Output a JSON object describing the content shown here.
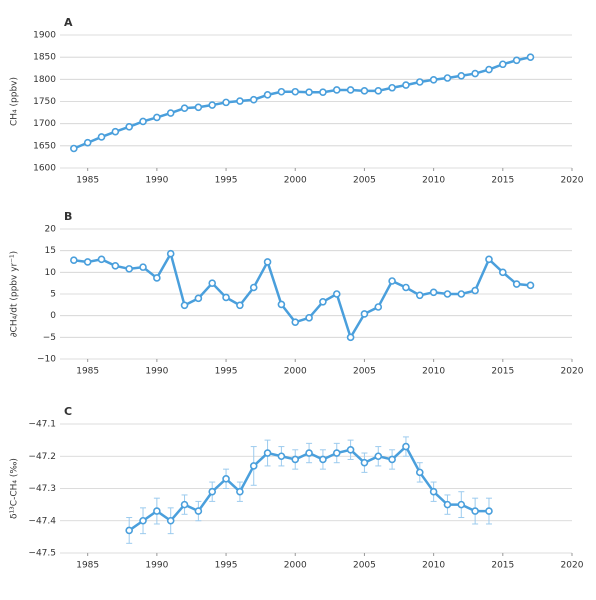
{
  "chart_data": [
    {
      "type": "line",
      "title": "A",
      "y_label": "CH₄ (ppbv)",
      "color": "#4a9fdc",
      "grid": true,
      "x": [
        1984,
        1985,
        1986,
        1987,
        1988,
        1989,
        1990,
        1991,
        1992,
        1993,
        1994,
        1995,
        1996,
        1997,
        1998,
        1999,
        2000,
        2001,
        2002,
        2003,
        2004,
        2005,
        2006,
        2007,
        2008,
        2009,
        2010,
        2011,
        2012,
        2013,
        2014,
        2015,
        2016,
        2017
      ],
      "values": [
        1644,
        1657,
        1670,
        1682,
        1693,
        1705,
        1714,
        1724,
        1735,
        1737,
        1742,
        1748,
        1751,
        1754,
        1765,
        1772,
        1772,
        1771,
        1771,
        1776,
        1776,
        1774,
        1774,
        1781,
        1787,
        1794,
        1799,
        1803,
        1808,
        1813,
        1822,
        1834,
        1843,
        1850
      ],
      "xlim": [
        1983,
        2020
      ],
      "xticks": [
        1985,
        1990,
        1995,
        2000,
        2005,
        2010,
        2015,
        2020
      ],
      "ylim": [
        1600,
        1900
      ],
      "yticks": [
        1600,
        1650,
        1700,
        1750,
        1800,
        1850,
        1900
      ]
    },
    {
      "type": "line",
      "title": "B",
      "y_label": "∂CH₄/dt (ppbv yr⁻¹)",
      "color": "#4a9fdc",
      "grid": true,
      "x": [
        1984,
        1985,
        1986,
        1987,
        1988,
        1989,
        1990,
        1991,
        1992,
        1993,
        1994,
        1995,
        1996,
        1997,
        1998,
        1999,
        2000,
        2001,
        2002,
        2003,
        2004,
        2005,
        2006,
        2007,
        2008,
        2009,
        2010,
        2011,
        2012,
        2013,
        2014,
        2015,
        2016,
        2017
      ],
      "values": [
        12.8,
        12.4,
        13.0,
        11.5,
        10.8,
        11.2,
        8.7,
        14.3,
        2.4,
        4.0,
        7.5,
        4.2,
        2.4,
        6.5,
        12.4,
        2.6,
        -1.5,
        -0.5,
        3.2,
        5.0,
        -5.0,
        0.4,
        2.0,
        8.0,
        6.5,
        4.7,
        5.4,
        5.0,
        5.0,
        5.8,
        13.0,
        10.0,
        7.3,
        7.0
      ],
      "xlim": [
        1983,
        2020
      ],
      "xticks": [
        1985,
        1990,
        1995,
        2000,
        2005,
        2010,
        2015,
        2020
      ],
      "ylim": [
        -10,
        20
      ],
      "yticks": [
        {
          "value": -10,
          "label": "−10"
        },
        {
          "value": -5,
          "label": "−5"
        },
        0,
        5,
        10,
        15,
        20
      ]
    },
    {
      "type": "line",
      "title": "C",
      "y_label": "δ¹³C-CH₄ (‰)",
      "color": "#4a9fdc",
      "grid": true,
      "x": [
        1988,
        1989,
        1990,
        1991,
        1992,
        1993,
        1994,
        1995,
        1996,
        1997,
        1998,
        1999,
        2000,
        2001,
        2002,
        2003,
        2004,
        2005,
        2006,
        2007,
        2008,
        2009,
        2010,
        2011,
        2012,
        2013,
        2014
      ],
      "values": [
        -47.43,
        -47.4,
        -47.37,
        -47.4,
        -47.35,
        -47.37,
        -47.31,
        -47.27,
        -47.31,
        -47.23,
        -47.19,
        -47.2,
        -47.21,
        -47.19,
        -47.21,
        -47.19,
        -47.18,
        -47.22,
        -47.2,
        -47.21,
        -47.17,
        -47.25,
        -47.31,
        -47.35,
        -47.35,
        -47.37,
        -47.37
      ],
      "errors": [
        0.04,
        0.04,
        0.04,
        0.04,
        0.03,
        0.03,
        0.03,
        0.03,
        0.03,
        0.06,
        0.04,
        0.03,
        0.03,
        0.03,
        0.03,
        0.03,
        0.03,
        0.03,
        0.03,
        0.03,
        0.03,
        0.03,
        0.03,
        0.03,
        0.04,
        0.04,
        0.04
      ],
      "xlim": [
        1983,
        2020
      ],
      "xticks": [
        1985,
        1990,
        1995,
        2000,
        2005,
        2010,
        2015,
        2020
      ],
      "ylim": [
        -47.5,
        -47.1
      ],
      "yticks": [
        {
          "value": -47.5,
          "label": "−47.5"
        },
        {
          "value": -47.4,
          "label": "−47.4"
        },
        {
          "value": -47.3,
          "label": "−47.3"
        },
        {
          "value": -47.2,
          "label": "−47.2"
        },
        {
          "value": -47.1,
          "label": "−47.1"
        }
      ]
    }
  ]
}
